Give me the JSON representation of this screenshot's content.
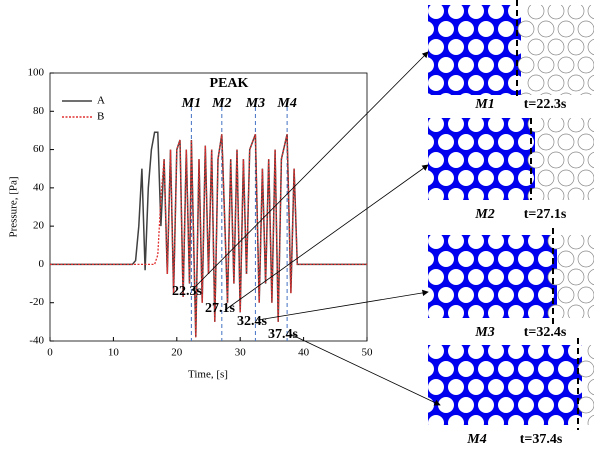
{
  "chart_data": {
    "type": "line",
    "xlabel": "Time, [s]",
    "ylabel": "Pressure, [Pa]",
    "x": [
      0,
      5,
      10,
      13,
      13.5,
      14,
      14.5,
      15,
      15.5,
      16,
      16.5,
      17,
      17.5,
      18,
      18.5,
      19,
      19.5,
      20,
      20.5,
      21,
      21.5,
      22,
      22.3,
      23,
      23.5,
      24,
      24.5,
      25,
      25.5,
      26,
      26.5,
      27.1,
      28,
      28.5,
      29,
      29.5,
      30,
      30.5,
      31,
      31.5,
      32.4,
      33,
      33.5,
      34,
      34.5,
      35,
      35.5,
      36,
      36.5,
      37.4,
      38,
      38.5,
      39,
      40,
      45,
      50
    ],
    "series": [
      {
        "name": "A",
        "color": "#404040",
        "dash": false,
        "values": [
          0,
          0,
          0,
          0,
          2,
          20,
          50,
          -3,
          40,
          60,
          69,
          69,
          20,
          55,
          -5,
          60,
          -15,
          60,
          65,
          -17,
          60,
          -10,
          65,
          -38,
          55,
          -20,
          62,
          -5,
          60,
          -30,
          55,
          68,
          -20,
          55,
          -10,
          60,
          -25,
          55,
          -5,
          60,
          68,
          -20,
          50,
          -10,
          55,
          -20,
          60,
          -30,
          55,
          68,
          -15,
          50,
          0,
          0,
          0,
          0
        ]
      },
      {
        "name": "B",
        "color": "#e03030",
        "dash": true,
        "values": [
          0,
          0,
          0,
          0,
          0,
          0,
          0,
          0,
          0,
          0,
          0,
          5,
          35,
          55,
          -5,
          60,
          -15,
          60,
          65,
          -17,
          60,
          -10,
          65,
          -38,
          55,
          -20,
          62,
          -5,
          60,
          -30,
          55,
          68,
          -20,
          55,
          -10,
          60,
          -25,
          55,
          -5,
          60,
          68,
          -20,
          50,
          -10,
          55,
          -20,
          60,
          -30,
          55,
          68,
          -15,
          50,
          0,
          0,
          0,
          0
        ]
      }
    ],
    "xlim": [
      0,
      50
    ],
    "xticks": [
      0,
      10,
      20,
      30,
      40,
      50
    ],
    "ylim": [
      -40,
      100
    ],
    "yticks": [
      -40,
      -20,
      0,
      20,
      40,
      60,
      80,
      100
    ],
    "peak_label": "PEAK",
    "markers": [
      {
        "label": "M1",
        "x": 22.3,
        "color": "#4472c4"
      },
      {
        "label": "M2",
        "x": 27.1,
        "color": "#4472c4"
      },
      {
        "label": "M3",
        "x": 32.4,
        "color": "#4472c4"
      },
      {
        "label": "M4",
        "x": 37.4,
        "color": "#4472c4"
      }
    ],
    "annotations": [
      "22.3s",
      "27.1s",
      "32.4s",
      "37.4s"
    ],
    "legend": "upper left"
  },
  "panels": [
    {
      "label": "M1",
      "time": "t=22.3s"
    },
    {
      "label": "M2",
      "time": "t=27.1s"
    },
    {
      "label": "M3",
      "time": "t=32.4s"
    },
    {
      "label": "M4",
      "time": "t=37.4s"
    }
  ]
}
